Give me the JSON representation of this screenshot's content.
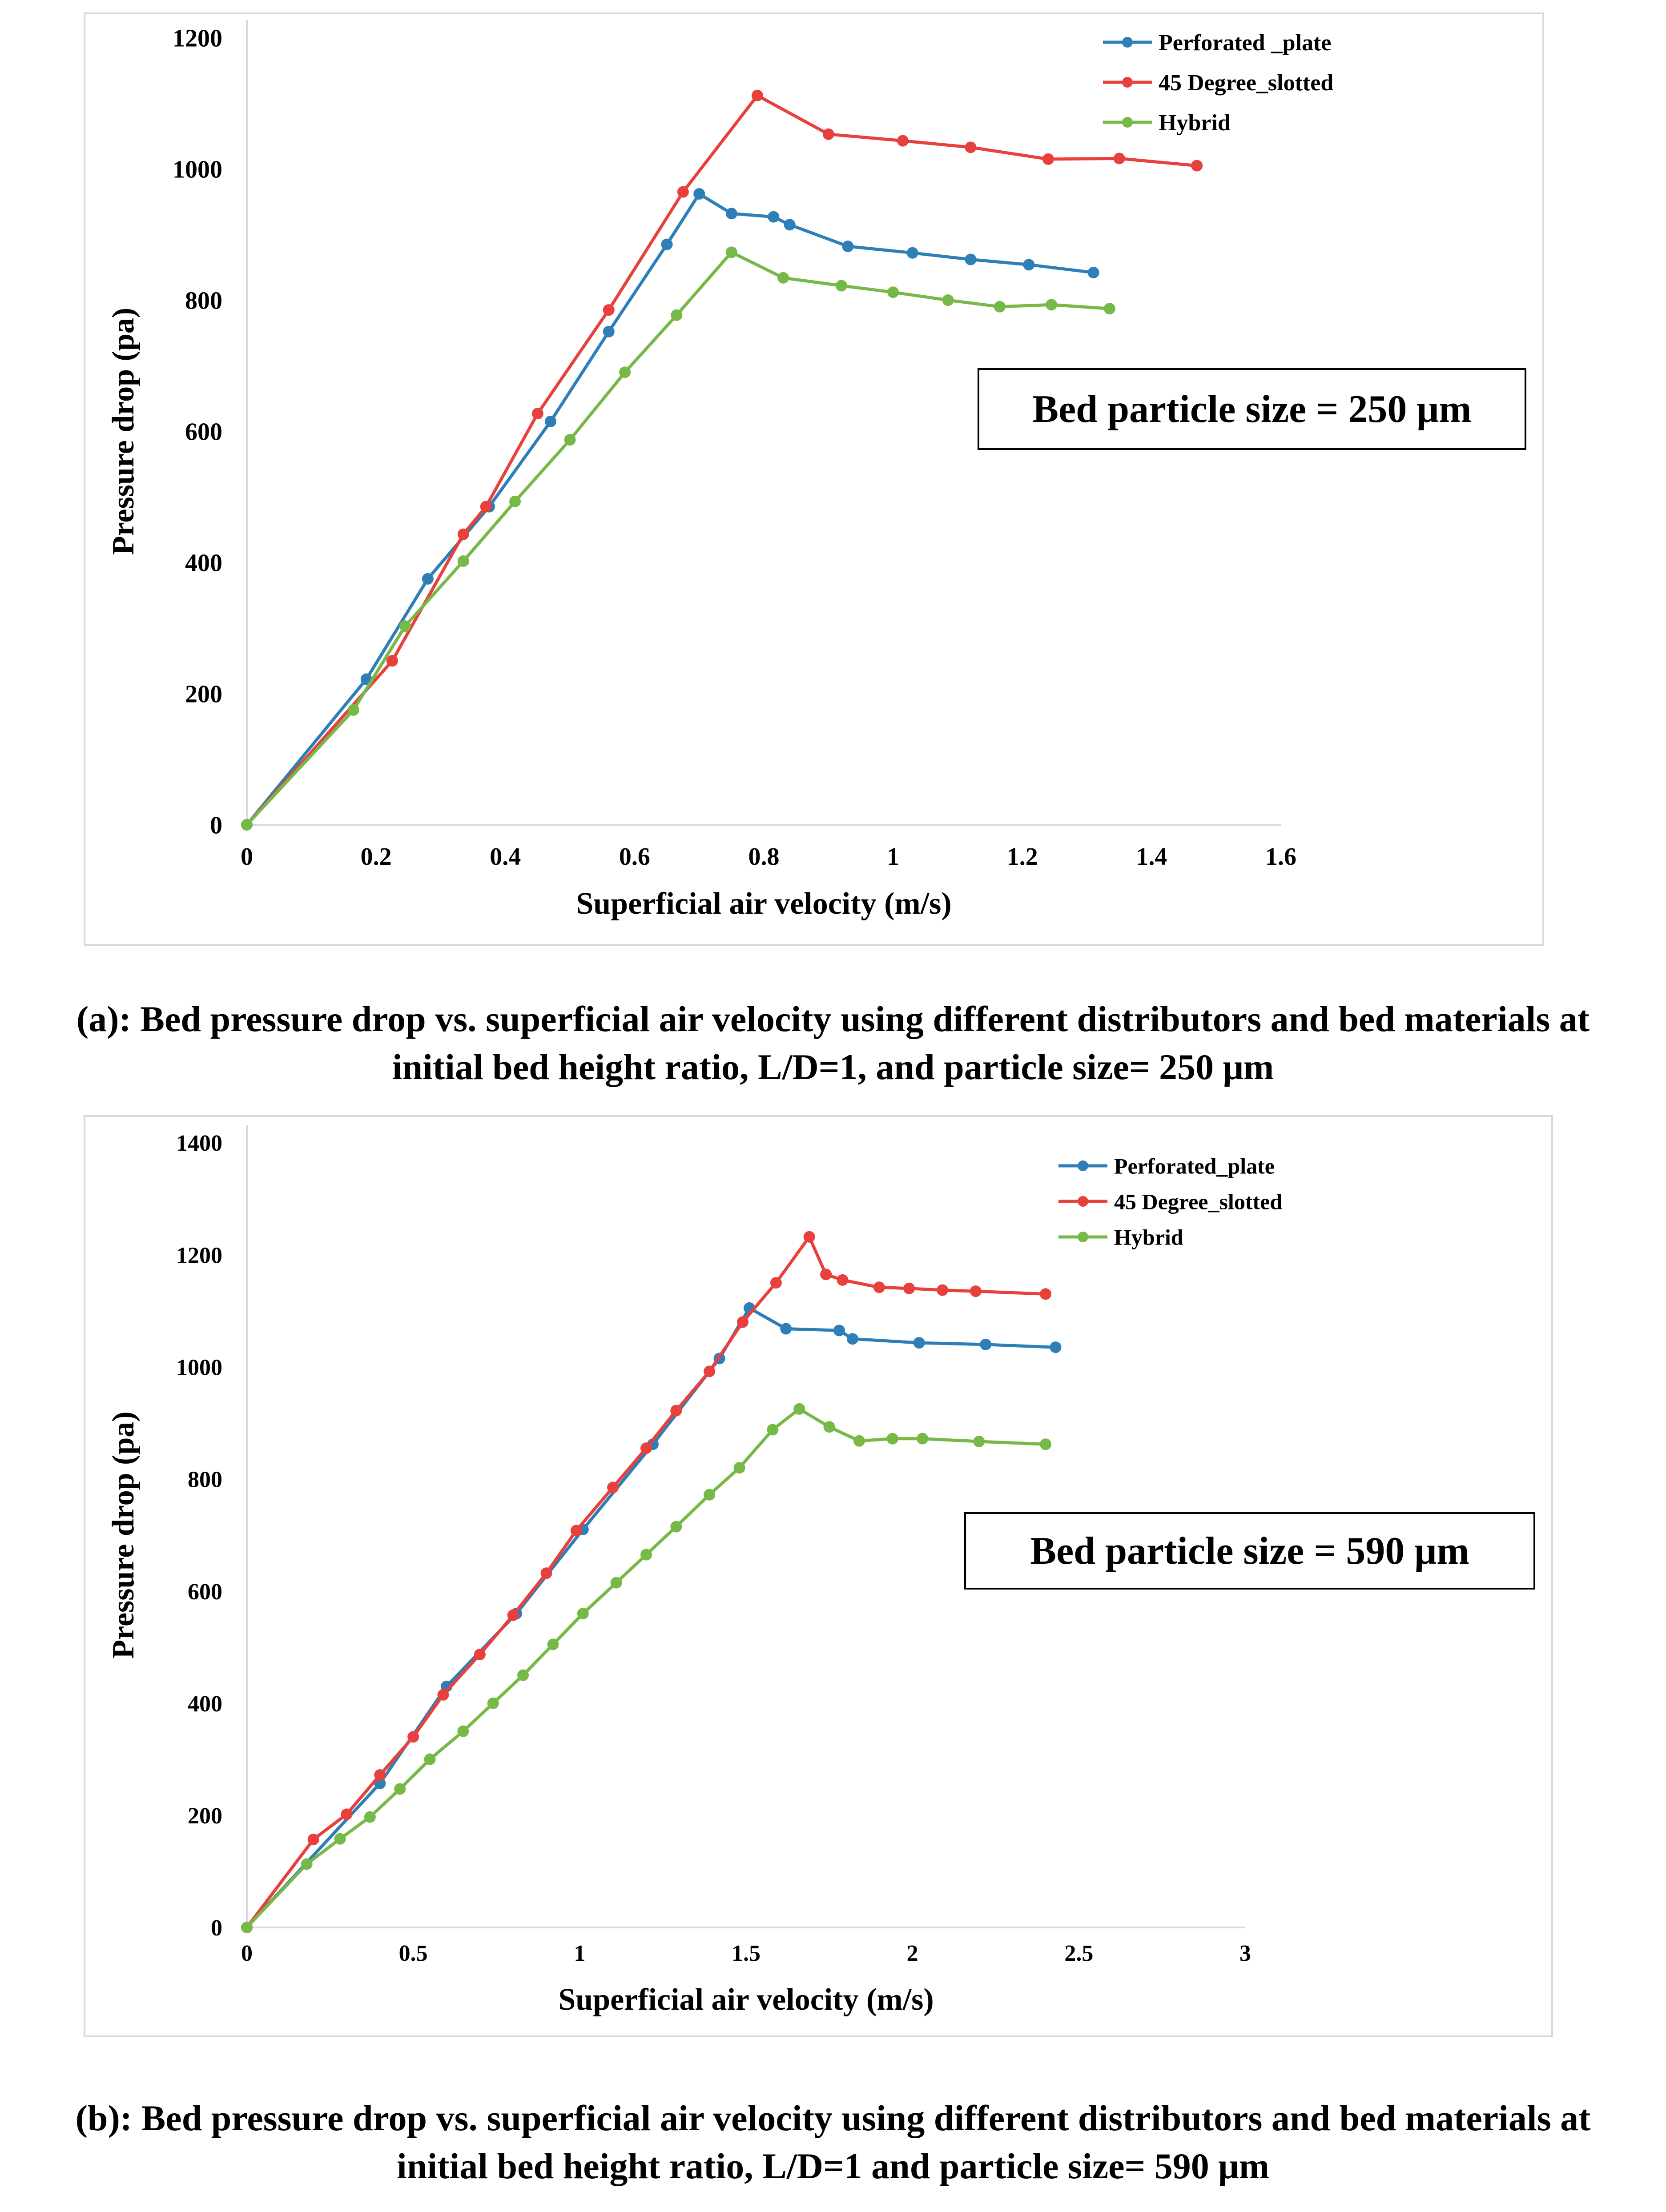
{
  "chart_data": [
    {
      "type": "line",
      "id": "a",
      "xlabel": "Superficial air velocity (m/s)",
      "ylabel": "Pressure drop (pa)",
      "xlim": [
        0,
        1.6
      ],
      "ylim": [
        0,
        1200
      ],
      "xticks": [
        0,
        0.2,
        0.4,
        0.6,
        0.8,
        1,
        1.2,
        1.4,
        1.6
      ],
      "xtick_labels": [
        "0",
        "0.2",
        "0.4",
        "0.6",
        "0.8",
        "1",
        "1.2",
        "1.4",
        "1.6"
      ],
      "yticks": [
        0,
        200,
        400,
        600,
        800,
        1000,
        1200
      ],
      "ytick_labels": [
        "0",
        "200",
        "400",
        "600",
        "800",
        "1000",
        "1200"
      ],
      "annotation": "Bed particle size = 250 μm",
      "legend_position": "top-right",
      "series": [
        {
          "name": "Perforated _plate",
          "color": "#2e7eb8",
          "x": [
            0,
            0.185,
            0.28,
            0.375,
            0.47,
            0.56,
            0.65,
            0.7,
            0.75,
            0.815,
            0.84,
            0.93,
            1.03,
            1.12,
            1.21,
            1.31
          ],
          "y": [
            0,
            222,
            375,
            485,
            615,
            752,
            885,
            962,
            932,
            927,
            915,
            882,
            872,
            862,
            854,
            842
          ]
        },
        {
          "name": "45 Degree_slotted",
          "color": "#e8403c",
          "x": [
            0,
            0.225,
            0.335,
            0.37,
            0.45,
            0.56,
            0.675,
            0.79,
            0.9,
            1.015,
            1.12,
            1.24,
            1.35,
            1.47
          ],
          "y": [
            0,
            250,
            443,
            485,
            627,
            785,
            965,
            1112,
            1053,
            1043,
            1033,
            1015,
            1016,
            1005
          ]
        },
        {
          "name": "Hybrid",
          "color": "#76b947",
          "x": [
            0,
            0.165,
            0.245,
            0.335,
            0.415,
            0.5,
            0.585,
            0.665,
            0.75,
            0.83,
            0.92,
            1.0,
            1.085,
            1.165,
            1.245,
            1.335
          ],
          "y": [
            0,
            175,
            303,
            402,
            493,
            587,
            690,
            777,
            873,
            834,
            822,
            812,
            800,
            790,
            793,
            787
          ]
        }
      ]
    },
    {
      "type": "line",
      "id": "b",
      "xlabel": "Superficial air velocity (m/s)",
      "ylabel": "Pressure drop (pa)",
      "xlim": [
        0,
        3
      ],
      "ylim": [
        0,
        1400
      ],
      "xticks": [
        0,
        0.5,
        1,
        1.5,
        2,
        2.5,
        3
      ],
      "xtick_labels": [
        "0",
        "0.5",
        "1",
        "1.5",
        "2",
        "2.5",
        "3"
      ],
      "yticks": [
        0,
        200,
        400,
        600,
        800,
        1000,
        1200,
        1400
      ],
      "ytick_labels": [
        "0",
        "200",
        "400",
        "600",
        "800",
        "1000",
        "1200",
        "1400"
      ],
      "annotation": "Bed particle size = 590 μm",
      "legend_position": "top-right",
      "series": [
        {
          "name": "Perforated_plate",
          "color": "#2e7eb8",
          "x": [
            0,
            0.4,
            0.6,
            0.81,
            1.01,
            1.22,
            1.42,
            1.51,
            1.62,
            1.78,
            1.82,
            2.02,
            2.22,
            2.43
          ],
          "y": [
            0,
            257,
            430,
            560,
            710,
            862,
            1015,
            1105,
            1068,
            1065,
            1050,
            1043,
            1040,
            1035
          ]
        },
        {
          "name": "45 Degree_slotted",
          "color": "#e8403c",
          "x": [
            0,
            0.2,
            0.3,
            0.4,
            0.5,
            0.59,
            0.7,
            0.8,
            0.9,
            0.99,
            1.1,
            1.2,
            1.29,
            1.39,
            1.49,
            1.59,
            1.69,
            1.74,
            1.79,
            1.9,
            1.99,
            2.09,
            2.19,
            2.4
          ],
          "y": [
            0,
            157,
            202,
            272,
            340,
            415,
            487,
            557,
            632,
            708,
            785,
            855,
            922,
            992,
            1080,
            1150,
            1232,
            1165,
            1155,
            1142,
            1140,
            1137,
            1135,
            1130
          ]
        },
        {
          "name": "Hybrid",
          "color": "#76b947",
          "x": [
            0,
            0.18,
            0.28,
            0.37,
            0.46,
            0.55,
            0.65,
            0.74,
            0.83,
            0.92,
            1.01,
            1.11,
            1.2,
            1.29,
            1.39,
            1.48,
            1.58,
            1.66,
            1.75,
            1.84,
            1.94,
            2.03,
            2.2,
            2.4
          ],
          "y": [
            0,
            113,
            158,
            197,
            247,
            300,
            350,
            400,
            450,
            505,
            560,
            615,
            665,
            715,
            772,
            820,
            888,
            925,
            893,
            868,
            872,
            872,
            867,
            862
          ]
        }
      ]
    }
  ],
  "captions": {
    "a_line1": "(a): Bed pressure drop vs. superficial air velocity using different distributors and bed materials at",
    "a_line2": "initial bed height ratio, L/D=1, and particle size= 250 μm",
    "b_line1": "(b): Bed pressure drop vs. superficial air velocity using different distributors and bed materials at",
    "b_line2": "initial bed height ratio, L/D=1 and particle size= 590 μm"
  }
}
